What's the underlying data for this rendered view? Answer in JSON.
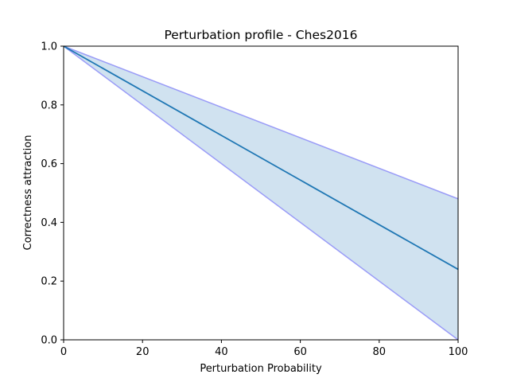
{
  "chart_data": {
    "type": "line",
    "title": "Perturbation profile - Ches2016",
    "xlabel": "Perturbation Probability",
    "ylabel": "Correctness attraction",
    "xlim": [
      0,
      100
    ],
    "ylim": [
      0.0,
      1.0
    ],
    "x_ticks": [
      "0",
      "20",
      "40",
      "60",
      "80",
      "100"
    ],
    "y_ticks": [
      "0.0",
      "0.2",
      "0.4",
      "0.6",
      "0.8",
      "1.0"
    ],
    "grid": false,
    "legend": "none",
    "x": [
      0,
      100
    ],
    "series": [
      {
        "role": "mean",
        "values": [
          1.0,
          0.24
        ],
        "color": "#1f77b4"
      },
      {
        "role": "upper-bound",
        "values": [
          1.0,
          0.48
        ],
        "color": "#9a9cf7"
      },
      {
        "role": "lower-bound",
        "values": [
          1.0,
          0.0
        ],
        "color": "#9a9cf7"
      }
    ],
    "band_fill_color": "#d0e2f0"
  }
}
